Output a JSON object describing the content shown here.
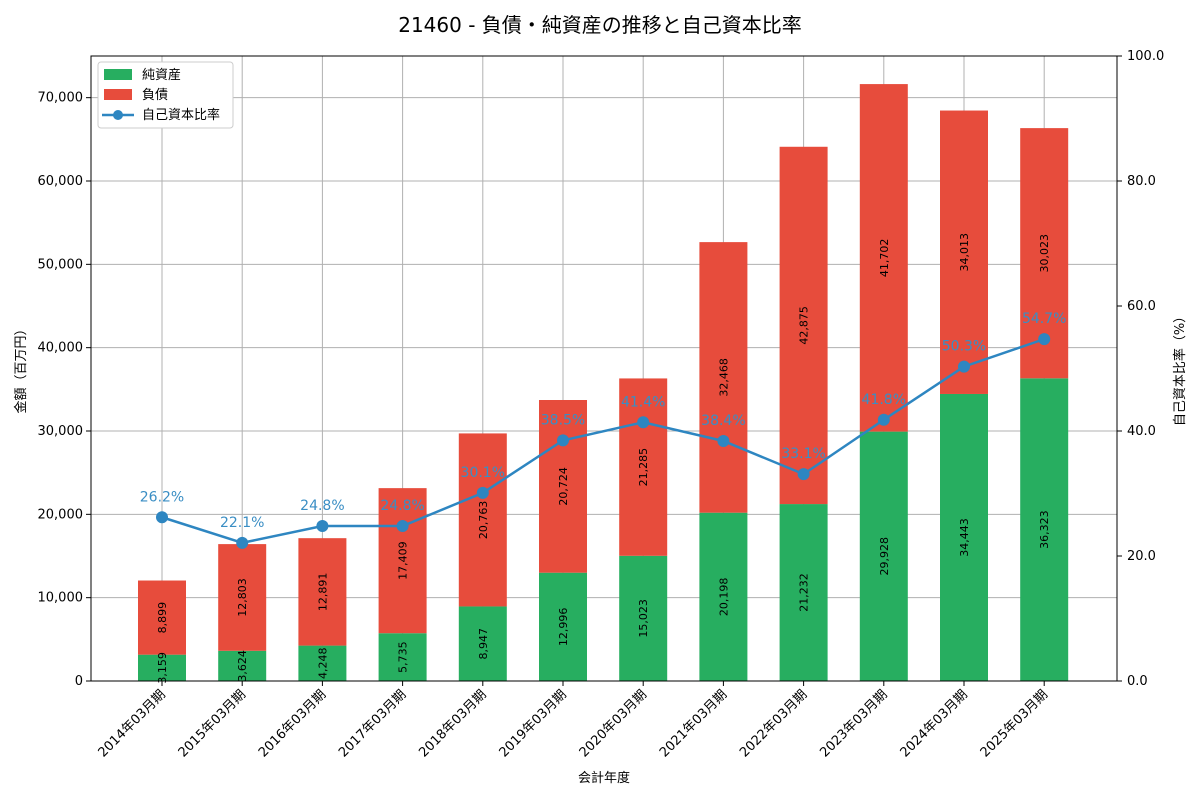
{
  "chart_data": {
    "type": "bar",
    "stacked": true,
    "title": "21460 - 負債・純資産の推移と自己資本比率",
    "xlabel": "会計年度",
    "ylabel": "金額（百万円）",
    "y2label": "自己資本比率（%）",
    "ylim": [
      0,
      75000
    ],
    "y2lim": [
      0,
      100
    ],
    "yticks": [
      "0",
      "10,000",
      "20,000",
      "30,000",
      "40,000",
      "50,000",
      "60,000",
      "70,000"
    ],
    "y2ticks": [
      "0.0",
      "20.0",
      "40.0",
      "60.0",
      "80.0",
      "100.0"
    ],
    "grid": true,
    "legend_position": "top-left",
    "categories": [
      "2014年03月期",
      "2015年03月期",
      "2016年03月期",
      "2017年03月期",
      "2018年03月期",
      "2019年03月期",
      "2020年03月期",
      "2021年03月期",
      "2022年03月期",
      "2023年03月期",
      "2024年03月期",
      "2025年03月期"
    ],
    "series": [
      {
        "name": "純資産",
        "color": "#27ae60",
        "values": [
          3159,
          3624,
          4248,
          5735,
          8947,
          12996,
          15023,
          20198,
          21232,
          29928,
          34443,
          36323
        ],
        "labels": [
          "3,159",
          "3,624",
          "4,248",
          "5,735",
          "8,947",
          "12,996",
          "15,023",
          "20,198",
          "21,232",
          "29,928",
          "34,443",
          "36,323"
        ]
      },
      {
        "name": "負債",
        "color": "#e74c3c",
        "values": [
          8899,
          12803,
          12891,
          17409,
          20763,
          20724,
          21285,
          32468,
          42875,
          41702,
          34013,
          30023
        ],
        "labels": [
          "8,899",
          "12,803",
          "12,891",
          "17,409",
          "20,763",
          "20,724",
          "21,285",
          "32,468",
          "42,875",
          "41,702",
          "34,013",
          "30,023"
        ]
      }
    ],
    "ratio_series": {
      "name": "自己資本比率",
      "color": "#2e86c1",
      "axis": "right",
      "values": [
        26.2,
        22.1,
        24.8,
        24.8,
        30.1,
        38.5,
        41.4,
        38.4,
        33.1,
        41.8,
        50.3,
        54.7
      ],
      "labels": [
        "26.2%",
        "22.1%",
        "24.8%",
        "24.8%",
        "30.1%",
        "38.5%",
        "41.4%",
        "38.4%",
        "33.1%",
        "41.8%",
        "50.3%",
        "54.7%"
      ]
    }
  }
}
